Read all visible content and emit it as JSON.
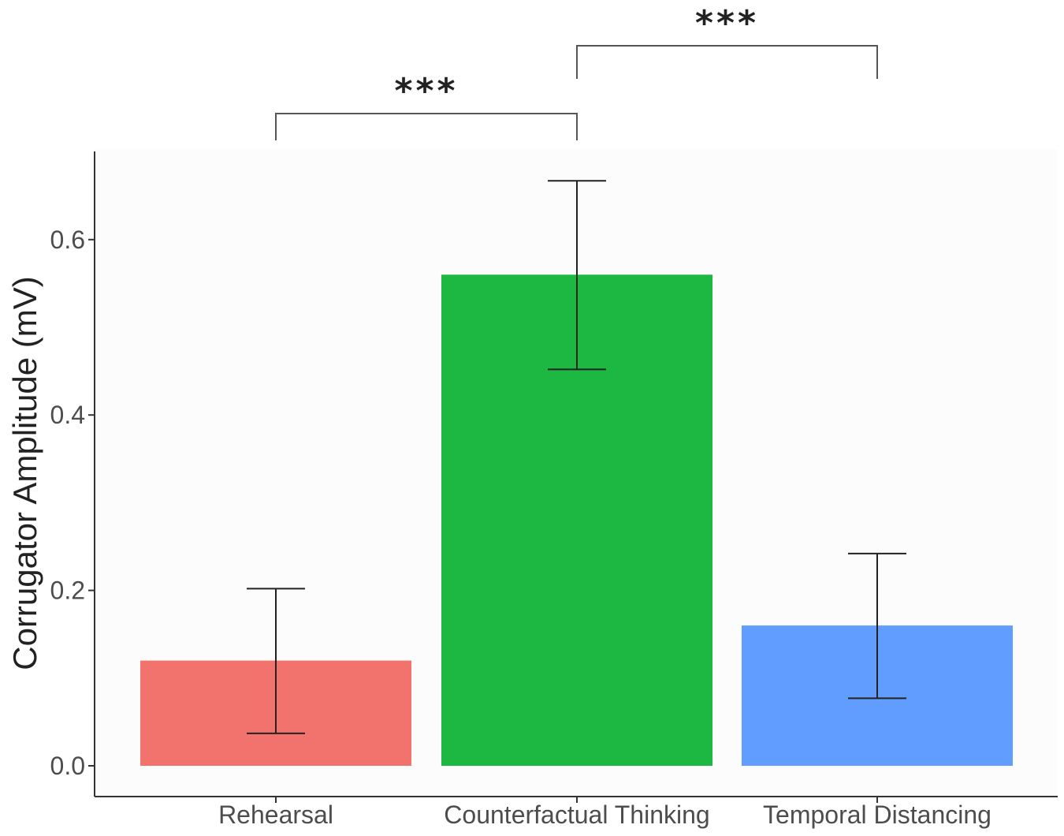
{
  "chart_data": {
    "type": "bar",
    "title": "",
    "xlabel": "",
    "ylabel": "Corrugator Amplitude (mV)",
    "categories": [
      "Rehearsal",
      "Counterfactual Thinking",
      "Temporal Distancing"
    ],
    "values": [
      0.12,
      0.56,
      0.16
    ],
    "error_low": [
      0.037,
      0.452,
      0.077
    ],
    "error_high": [
      0.202,
      0.667,
      0.242
    ],
    "colors": [
      "#F2736E",
      "#1DB842",
      "#619CFF"
    ],
    "ylim": [
      0.0,
      0.7
    ],
    "yticks": [
      0.0,
      0.2,
      0.4,
      0.6
    ],
    "ytick_labels": [
      "0.0",
      "0.2",
      "0.4",
      "0.6"
    ],
    "grid": false,
    "significance": [
      {
        "from": 0,
        "to": 1,
        "label": "***"
      },
      {
        "from": 1,
        "to": 2,
        "label": "***"
      }
    ]
  }
}
